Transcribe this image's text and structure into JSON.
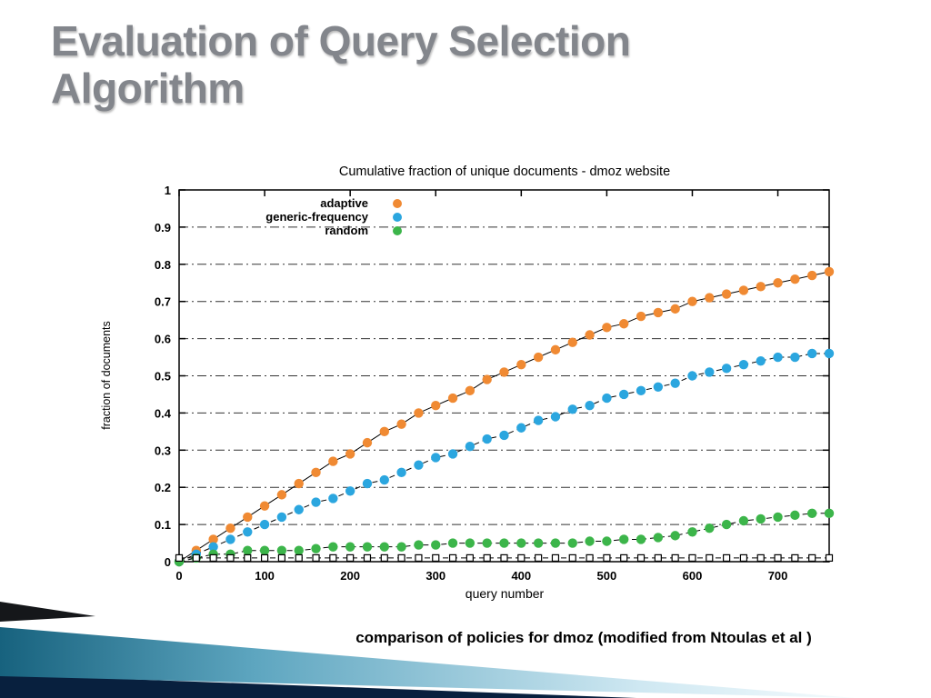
{
  "slide": {
    "title": "Evaluation of Query Selection Algorithm",
    "caption": "comparison of policies for dmoz (modified from Ntoulas et al )"
  },
  "colors": {
    "title_gray": "#83868c",
    "adaptive_orange": "#f08a33",
    "generic_blue": "#2ba6df",
    "random_green": "#3cb54a",
    "decor_teal_dark": "#17627e",
    "decor_teal_light": "#f4fbfd",
    "decor_navy": "#08203e",
    "decor_black": "#15171a"
  },
  "chart_data": {
    "type": "line",
    "title": "Cumulative fraction of unique documents - dmoz website",
    "xlabel": "query number",
    "ylabel": "fraction of documents",
    "xlim": [
      0,
      760
    ],
    "ylim": [
      0,
      1
    ],
    "xticks": [
      0,
      100,
      200,
      300,
      400,
      500,
      600,
      700
    ],
    "yticks": [
      0,
      0.1,
      0.2,
      0.3,
      0.4,
      0.5,
      0.6,
      0.7,
      0.8,
      0.9,
      1
    ],
    "grid": "horizontal dash-dot",
    "legend_position": "inside top-left",
    "x": [
      0,
      20,
      40,
      60,
      80,
      100,
      120,
      140,
      160,
      180,
      200,
      220,
      240,
      260,
      280,
      300,
      320,
      340,
      360,
      380,
      400,
      420,
      440,
      460,
      480,
      500,
      520,
      540,
      560,
      580,
      600,
      620,
      640,
      660,
      680,
      700,
      720,
      740,
      760
    ],
    "series": [
      {
        "id": "adaptive",
        "name": "adaptive",
        "color": "#f08a33",
        "marker": "circle",
        "line_dash": "",
        "values": [
          0,
          0.03,
          0.06,
          0.09,
          0.12,
          0.15,
          0.18,
          0.21,
          0.24,
          0.27,
          0.29,
          0.32,
          0.35,
          0.37,
          0.4,
          0.42,
          0.44,
          0.46,
          0.49,
          0.51,
          0.53,
          0.55,
          0.57,
          0.59,
          0.61,
          0.63,
          0.64,
          0.66,
          0.67,
          0.68,
          0.7,
          0.71,
          0.72,
          0.73,
          0.74,
          0.75,
          0.76,
          0.77,
          0.78
        ]
      },
      {
        "id": "generic-frequency",
        "name": "generic-frequency",
        "color": "#2ba6df",
        "marker": "circle",
        "line_dash": "6 4",
        "values": [
          0,
          0.02,
          0.04,
          0.06,
          0.08,
          0.1,
          0.12,
          0.14,
          0.16,
          0.17,
          0.19,
          0.21,
          0.22,
          0.24,
          0.26,
          0.28,
          0.29,
          0.31,
          0.33,
          0.34,
          0.36,
          0.38,
          0.39,
          0.41,
          0.42,
          0.44,
          0.45,
          0.46,
          0.47,
          0.48,
          0.5,
          0.51,
          0.52,
          0.53,
          0.54,
          0.55,
          0.55,
          0.56,
          0.56
        ]
      },
      {
        "id": "random",
        "name": "random",
        "color": "#3cb54a",
        "marker": "circle",
        "line_dash": "6 4",
        "values": [
          0,
          0.01,
          0.02,
          0.02,
          0.03,
          0.03,
          0.03,
          0.03,
          0.035,
          0.04,
          0.04,
          0.04,
          0.04,
          0.04,
          0.045,
          0.045,
          0.05,
          0.05,
          0.05,
          0.05,
          0.05,
          0.05,
          0.05,
          0.05,
          0.055,
          0.055,
          0.06,
          0.06,
          0.065,
          0.07,
          0.08,
          0.09,
          0.1,
          0.11,
          0.115,
          0.12,
          0.125,
          0.13,
          0.13
        ]
      },
      {
        "id": "baseline-squares",
        "name": "",
        "color": "#ffffff",
        "marker": "square-open",
        "line_dash": "6 4",
        "values": [
          0.01,
          0.01,
          0.01,
          0.01,
          0.01,
          0.01,
          0.01,
          0.01,
          0.01,
          0.01,
          0.01,
          0.01,
          0.01,
          0.01,
          0.01,
          0.01,
          0.01,
          0.01,
          0.01,
          0.01,
          0.01,
          0.01,
          0.01,
          0.01,
          0.01,
          0.01,
          0.01,
          0.01,
          0.01,
          0.01,
          0.01,
          0.01,
          0.01,
          0.01,
          0.01,
          0.01,
          0.01,
          0.01,
          0.01
        ]
      }
    ]
  }
}
